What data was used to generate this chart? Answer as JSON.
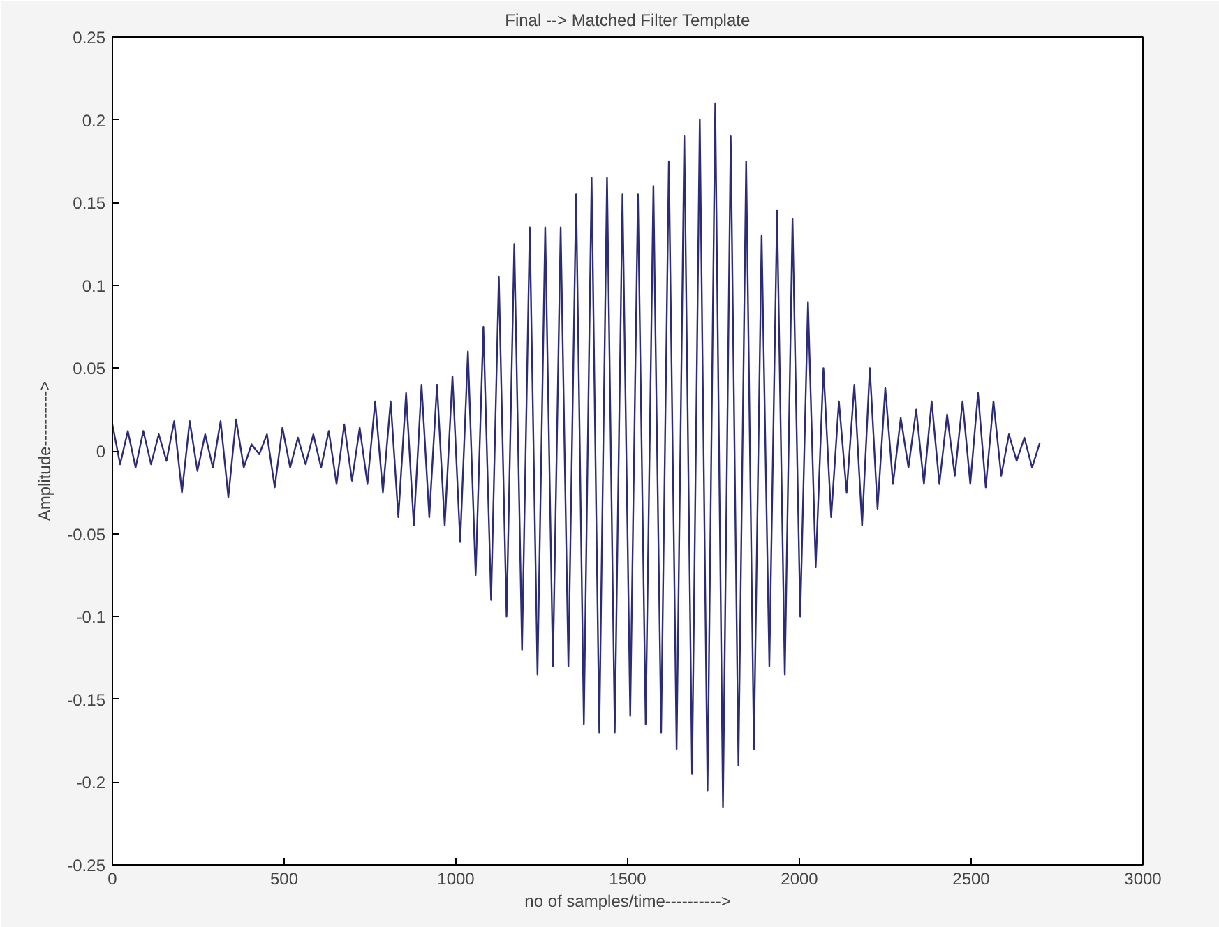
{
  "chart_data": {
    "type": "line",
    "title": "Final --> Matched Filter Template",
    "xlabel": "no of samples/time---------->",
    "ylabel": "Amplitude---------->",
    "xlim": [
      0,
      3000
    ],
    "xticks": [
      0,
      500,
      1000,
      1500,
      2000,
      2500,
      3000
    ],
    "ylim": [
      -0.25,
      0.25
    ],
    "yticks": [
      -0.25,
      -0.2,
      -0.15,
      -0.1,
      -0.05,
      0,
      0.05,
      0.1,
      0.15,
      0.2,
      0.25
    ],
    "grid": false,
    "series": [
      {
        "color": "#2b2b78",
        "x": [
          0,
          22.5,
          45,
          67.5,
          90,
          112.5,
          135,
          157.5,
          180,
          202.5,
          225,
          247.5,
          270,
          292.5,
          315,
          337.5,
          360,
          382.5,
          405,
          427.5,
          450,
          472.5,
          495,
          517.5,
          540,
          562.5,
          585,
          607.5,
          630,
          652.5,
          675,
          697.5,
          720,
          742.5,
          765,
          787.5,
          810,
          832.5,
          855,
          877.5,
          900,
          922.5,
          945,
          967.5,
          990,
          1012.5,
          1035,
          1057.5,
          1080,
          1102.5,
          1125,
          1147.5,
          1170,
          1192.5,
          1215,
          1237.5,
          1260,
          1282.5,
          1305,
          1327.5,
          1350,
          1372.5,
          1395,
          1417.5,
          1440,
          1462.5,
          1485,
          1507.5,
          1530,
          1552.5,
          1575,
          1597.5,
          1620,
          1642.5,
          1665,
          1687.5,
          1710,
          1732.5,
          1755,
          1777.5,
          1800,
          1822.5,
          1845,
          1867.5,
          1890,
          1912.5,
          1935,
          1957.5,
          1980,
          2002.5,
          2025,
          2047.5,
          2070,
          2092.5,
          2115,
          2137.5,
          2160,
          2182.5,
          2205,
          2227.5,
          2250,
          2272.5,
          2295,
          2317.5,
          2340,
          2362.5,
          2385,
          2407.5,
          2430,
          2452.5,
          2475,
          2497.5,
          2520,
          2542.5,
          2565,
          2587.5,
          2610,
          2632.5,
          2655,
          2677.5,
          2700
        ],
        "values": [
          0.016,
          -0.008,
          0.012,
          -0.01,
          0.012,
          -0.008,
          0.01,
          -0.006,
          0.018,
          -0.025,
          0.018,
          -0.012,
          0.01,
          -0.01,
          0.018,
          -0.028,
          0.019,
          -0.01,
          0.004,
          -0.002,
          0.01,
          -0.022,
          0.014,
          -0.01,
          0.008,
          -0.008,
          0.01,
          -0.01,
          0.012,
          -0.02,
          0.016,
          -0.018,
          0.014,
          -0.02,
          0.03,
          -0.025,
          0.03,
          -0.04,
          0.035,
          -0.045,
          0.04,
          -0.04,
          0.04,
          -0.045,
          0.045,
          -0.055,
          0.06,
          -0.075,
          0.075,
          -0.09,
          0.105,
          -0.1,
          0.125,
          -0.12,
          0.135,
          -0.135,
          0.135,
          -0.13,
          0.135,
          -0.13,
          0.155,
          -0.165,
          0.165,
          -0.17,
          0.165,
          -0.17,
          0.155,
          -0.16,
          0.155,
          -0.165,
          0.16,
          -0.17,
          0.175,
          -0.18,
          0.19,
          -0.195,
          0.2,
          -0.205,
          0.21,
          -0.215,
          0.19,
          -0.19,
          0.175,
          -0.18,
          0.13,
          -0.13,
          0.145,
          -0.135,
          0.14,
          -0.1,
          0.09,
          -0.07,
          0.05,
          -0.04,
          0.03,
          -0.025,
          0.04,
          -0.045,
          0.05,
          -0.035,
          0.038,
          -0.02,
          0.02,
          -0.01,
          0.025,
          -0.02,
          0.03,
          -0.02,
          0.022,
          -0.015,
          0.03,
          -0.02,
          0.035,
          -0.022,
          0.03,
          -0.015,
          0.01,
          -0.006,
          0.008,
          -0.01,
          0.005
        ]
      }
    ]
  }
}
